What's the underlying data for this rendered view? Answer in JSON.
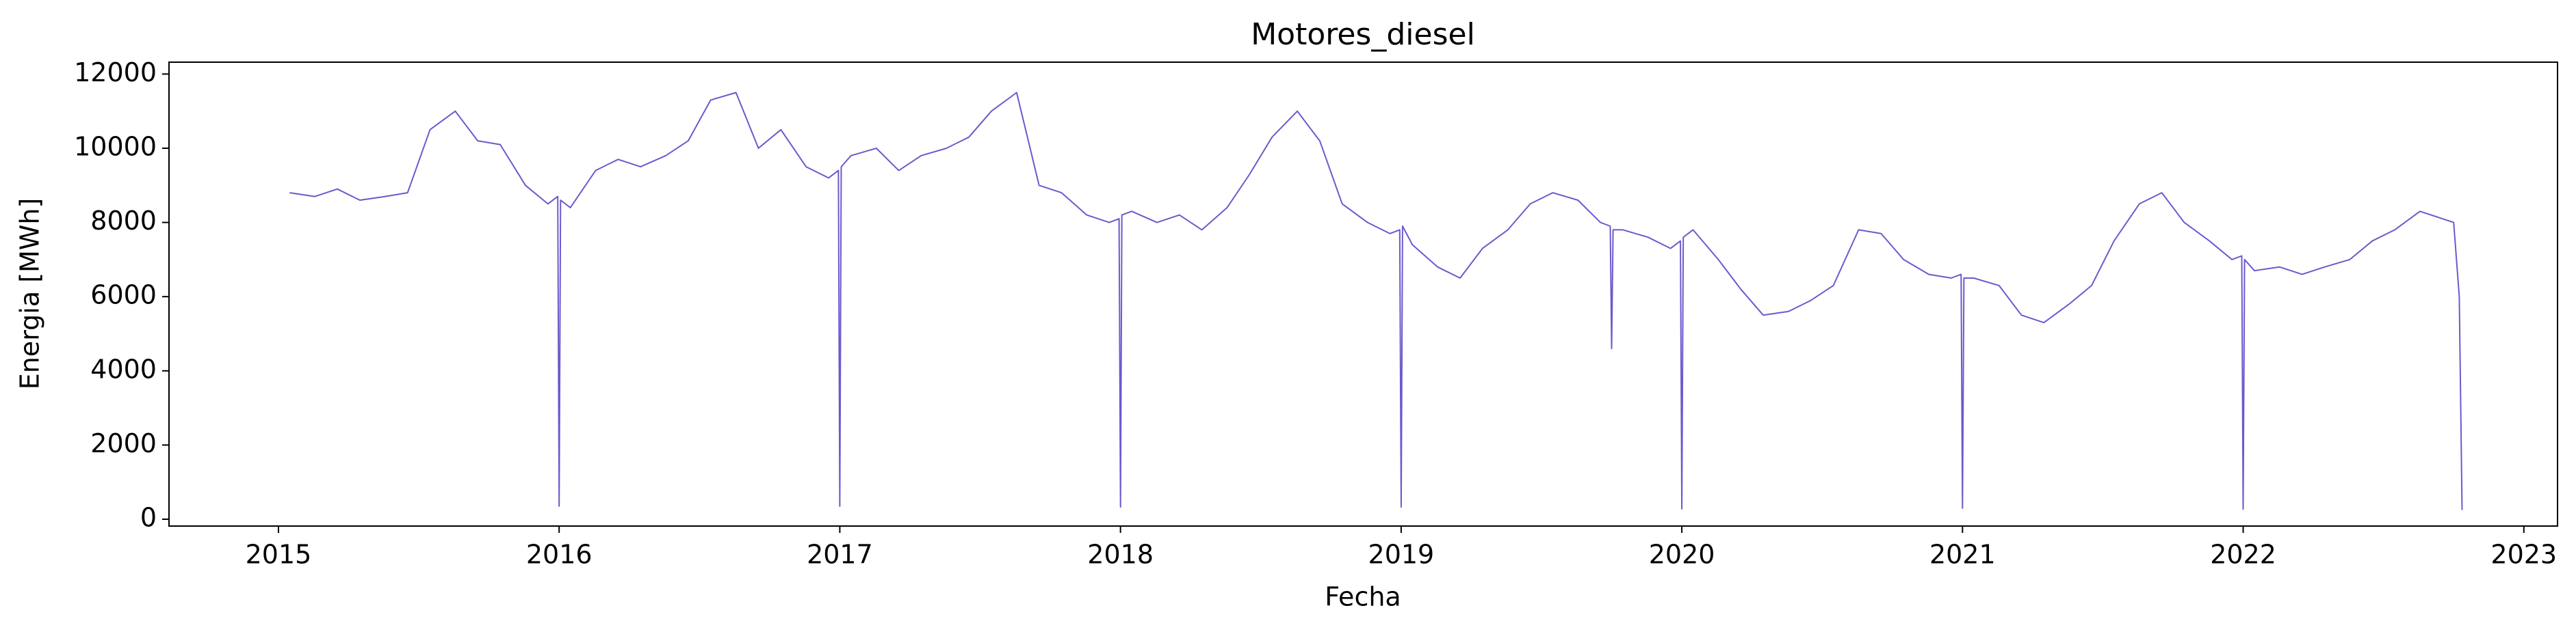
{
  "chart_data": {
    "type": "line",
    "title": "Motores_diesel",
    "x_label": "Fecha",
    "y_label": "Energia [MWh]",
    "xlim": [
      2014.61,
      2023.12
    ],
    "ylim": [
      -184,
      12320
    ],
    "xticks": [
      2015,
      2016,
      2017,
      2018,
      2019,
      2020,
      2021,
      2022,
      2023
    ],
    "yticks": [
      0,
      2000,
      4000,
      6000,
      8000,
      10000,
      12000
    ],
    "grid": false,
    "x": [
      2015.04,
      2015.13,
      2015.21,
      2015.29,
      2015.38,
      2015.46,
      2015.54,
      2015.63,
      2015.71,
      2015.79,
      2015.88,
      2015.96,
      2015.995,
      2016.0,
      2016.005,
      2016.04,
      2016.13,
      2016.21,
      2016.29,
      2016.38,
      2016.46,
      2016.54,
      2016.63,
      2016.71,
      2016.79,
      2016.88,
      2016.96,
      2016.995,
      2017.0,
      2017.005,
      2017.04,
      2017.13,
      2017.21,
      2017.29,
      2017.38,
      2017.46,
      2017.54,
      2017.63,
      2017.71,
      2017.79,
      2017.88,
      2017.96,
      2017.995,
      2018.0,
      2018.005,
      2018.04,
      2018.13,
      2018.21,
      2018.29,
      2018.38,
      2018.46,
      2018.54,
      2018.63,
      2018.71,
      2018.79,
      2018.88,
      2018.96,
      2018.995,
      2019.0,
      2019.005,
      2019.04,
      2019.13,
      2019.21,
      2019.29,
      2019.38,
      2019.46,
      2019.54,
      2019.63,
      2019.71,
      2019.745,
      2019.75,
      2019.755,
      2019.79,
      2019.88,
      2019.96,
      2019.995,
      2020.0,
      2020.005,
      2020.04,
      2020.13,
      2020.21,
      2020.29,
      2020.38,
      2020.46,
      2020.54,
      2020.63,
      2020.71,
      2020.79,
      2020.88,
      2020.96,
      2020.995,
      2021.0,
      2021.005,
      2021.04,
      2021.13,
      2021.21,
      2021.29,
      2021.38,
      2021.46,
      2021.54,
      2021.63,
      2021.71,
      2021.79,
      2021.88,
      2021.96,
      2021.995,
      2022.0,
      2022.005,
      2022.04,
      2022.13,
      2022.21,
      2022.29,
      2022.38,
      2022.46,
      2022.54,
      2022.63,
      2022.71,
      2022.75,
      2022.77,
      2022.78
    ],
    "series": [
      {
        "name": "Motores_diesel",
        "color": "#6a5acd",
        "values": [
          8800,
          8700,
          8900,
          8600,
          8700,
          8800,
          10500,
          11000,
          10200,
          10100,
          9000,
          8500,
          8700,
          350,
          8600,
          8400,
          9400,
          9700,
          9500,
          9800,
          10200,
          11300,
          11500,
          10000,
          10500,
          9500,
          9200,
          9400,
          350,
          9500,
          9800,
          10000,
          9400,
          9800,
          10000,
          10300,
          11000,
          11500,
          9000,
          8800,
          8200,
          8000,
          8100,
          330,
          8200,
          8300,
          8000,
          8200,
          7800,
          8400,
          9300,
          10300,
          11000,
          10200,
          8500,
          8000,
          7700,
          7800,
          330,
          7900,
          7400,
          6800,
          6500,
          7300,
          7800,
          8500,
          8800,
          8600,
          8000,
          7900,
          4600,
          7800,
          7800,
          7600,
          7300,
          7500,
          280,
          7600,
          7800,
          7000,
          6200,
          5500,
          5600,
          5900,
          6300,
          7800,
          7700,
          7000,
          6600,
          6500,
          6600,
          300,
          6500,
          6500,
          6300,
          5500,
          5300,
          5800,
          6300,
          7500,
          8500,
          8800,
          8000,
          7500,
          7000,
          7100,
          270,
          7000,
          6700,
          6800,
          6600,
          6800,
          7000,
          7500,
          7800,
          8300,
          8100,
          8000,
          6000,
          250
        ]
      }
    ]
  }
}
